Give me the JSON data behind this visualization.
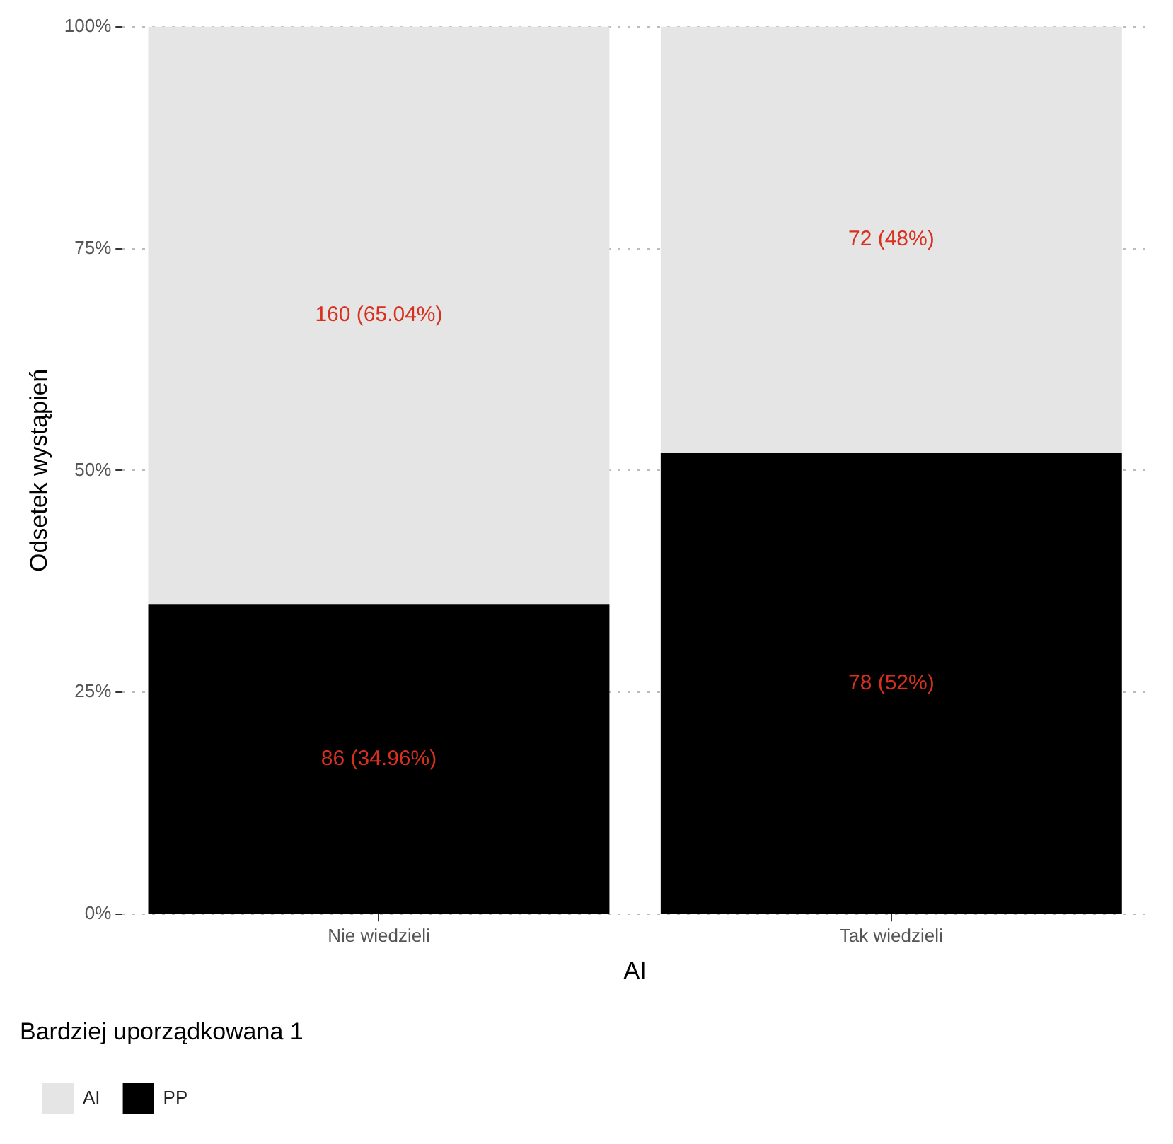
{
  "chart_data": {
    "type": "bar",
    "stacked": true,
    "xlabel": "AI",
    "ylabel": "Odsetek wystąpień",
    "legend_title": "Bardziej uporządkowana 1",
    "legend": "bottom left",
    "categories": [
      "Nie wiedzieli",
      "Tak wiedzieli"
    ],
    "series": [
      {
        "name": "PP",
        "color": "#000000",
        "values": [
          34.96,
          52
        ],
        "value_labels": [
          "86 (34.96%)",
          "78 (52%)"
        ]
      },
      {
        "name": "AI",
        "color": "#e5e5e5",
        "values": [
          65.04,
          48
        ],
        "value_labels": [
          "160 (65.04%)",
          "72 (48%)"
        ]
      }
    ],
    "ylim": [
      0,
      100
    ],
    "yticks": [
      {
        "value": 0,
        "label": "0%"
      },
      {
        "value": 25,
        "label": "25%"
      },
      {
        "value": 50,
        "label": "50%"
      },
      {
        "value": 75,
        "label": "75%"
      },
      {
        "value": 100,
        "label": "100%"
      }
    ],
    "grid": true
  }
}
